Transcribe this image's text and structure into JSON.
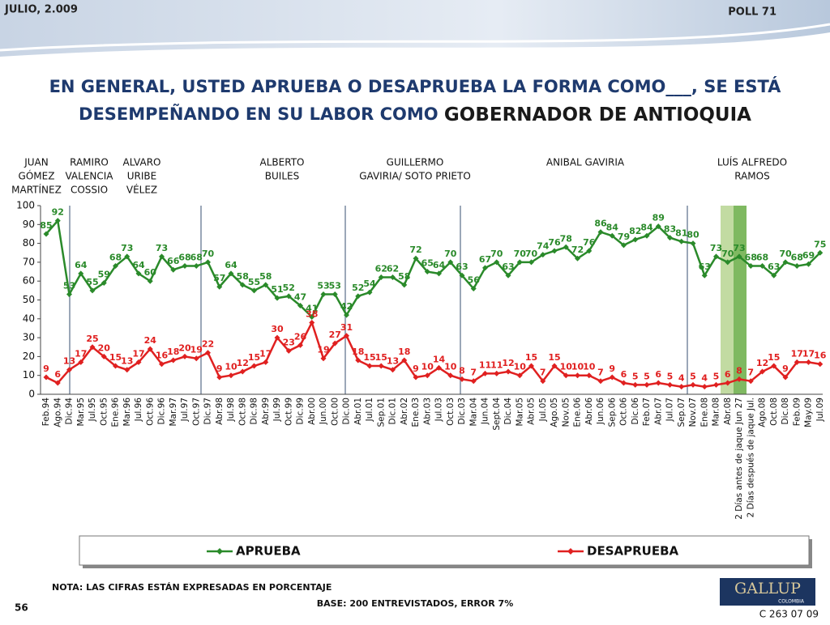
{
  "header": {
    "date": "JULIO, 2.009",
    "poll": "POLL 71"
  },
  "chart_data": {
    "type": "line",
    "title_lines": [
      "EN GENERAL, USTED APRUEBA O DESAPRUEBA LA FORMA COMO___, SE ESTÁ",
      "DESEMPEÑANDO EN SU LABOR COMO "
    ],
    "title_emphasis": "GOBERNADOR DE ANTIOQUIA",
    "groups": [
      [
        "JUAN",
        "GÓMEZ",
        "MARTÍNEZ"
      ],
      [
        "RAMIRO",
        "VALENCIA",
        "COSSIO"
      ],
      [
        "ALVARO",
        "URIBE",
        "VÉLEZ"
      ],
      [
        "ALBERTO",
        "BUILES"
      ],
      [
        "GUILLERMO",
        "GAVIRIA/ SOTO PRIETO"
      ],
      [
        "ANIBAL GAVIRIA"
      ],
      [
        "LUÍS ALFREDO",
        "RAMOS"
      ]
    ],
    "categories": [
      "Feb.94",
      "Ago.94",
      "Dic.94",
      "Mar.95",
      "Jul.95",
      "Oct.95",
      "Ene.96",
      "Mar.96",
      "Jul.96",
      "Oct.96",
      "Dic.96",
      "Mar.97",
      "Jul.97",
      "Oct.97",
      "Dic.97",
      "Abr.98",
      "Jul.98",
      "Oct.98",
      "Dic.98",
      "Abr.99",
      "Jul.99",
      "Oct.99",
      "Dic.99",
      "Abr.00",
      "Jun.00",
      "Oct.00",
      "Dic.00",
      "Abr.01",
      "Jul.01",
      "Sep.01",
      "Dic.01",
      "Abr.02",
      "Ene.03",
      "Abr.03",
      "Jul.03",
      "Oct.03",
      "Dic.03",
      "Mar.04",
      "Jun.04",
      "Sept.04",
      "Dic.04",
      "Mar.05",
      "Abr.05",
      "Jul.05",
      "Ago.05",
      "Nov.05",
      "Ene.06",
      "Abr.06",
      "Jun.06",
      "Sep.06",
      "Oct.06",
      "Dic.06",
      "Feb.07",
      "Abr.07",
      "Jul.07",
      "Sep.07",
      "Nov.07",
      "Ene.08",
      "Mar.08",
      "Abr.08",
      "2 Días antes de jaque Jun 27",
      "2 Días después de jaque Jul.",
      "Ago.08",
      "Oct.08",
      "Dic.08",
      "Feb.09",
      "May.09",
      "Jul.09"
    ],
    "series": [
      {
        "name": "APRUEBA",
        "color": "#2a8a2a",
        "values": [
          85,
          92,
          53,
          64,
          55,
          59,
          68,
          73,
          64,
          60,
          73,
          66,
          68,
          68,
          70,
          57,
          64,
          58,
          55,
          58,
          51,
          52,
          47,
          41,
          53,
          53,
          42,
          52,
          54,
          62,
          62,
          58,
          72,
          65,
          64,
          70,
          63,
          56,
          67,
          70,
          63,
          70,
          70,
          74,
          76,
          78,
          72,
          76,
          86,
          84,
          79,
          82,
          84,
          89,
          83,
          81,
          80,
          63,
          73,
          70,
          73,
          68,
          68,
          63,
          70,
          68,
          69,
          75
        ]
      },
      {
        "name": "DESAPRUEBA",
        "color": "#e02020",
        "values": [
          9,
          6,
          13,
          17,
          25,
          20,
          15,
          13,
          17,
          24,
          16,
          18,
          20,
          19,
          22,
          9,
          10,
          12,
          15,
          17,
          30,
          23,
          26,
          38,
          19,
          27,
          31,
          18,
          15,
          15,
          13,
          18,
          9,
          10,
          14,
          10,
          8,
          7,
          11,
          11,
          12,
          10,
          15,
          7,
          15,
          10,
          10,
          10,
          7,
          9,
          6,
          5,
          5,
          6,
          5,
          4,
          5,
          4,
          5,
          6,
          8,
          7,
          12,
          15,
          9,
          17,
          17,
          16
        ]
      }
    ],
    "ylim": [
      0,
      100
    ],
    "yticks": [
      0,
      10,
      20,
      30,
      40,
      50,
      60,
      70,
      80,
      90,
      100
    ],
    "grid": false
  },
  "footer": {
    "note": "NOTA: LAS CIFRAS ESTÁN EXPRESADAS EN PORCENTAJE",
    "base": "BASE: 200 ENTREVISTADOS, ERROR 7%",
    "page": "56",
    "logo": "GALLUP",
    "logo_sub": "COLOMBIA",
    "code": "C 263 07 09"
  }
}
